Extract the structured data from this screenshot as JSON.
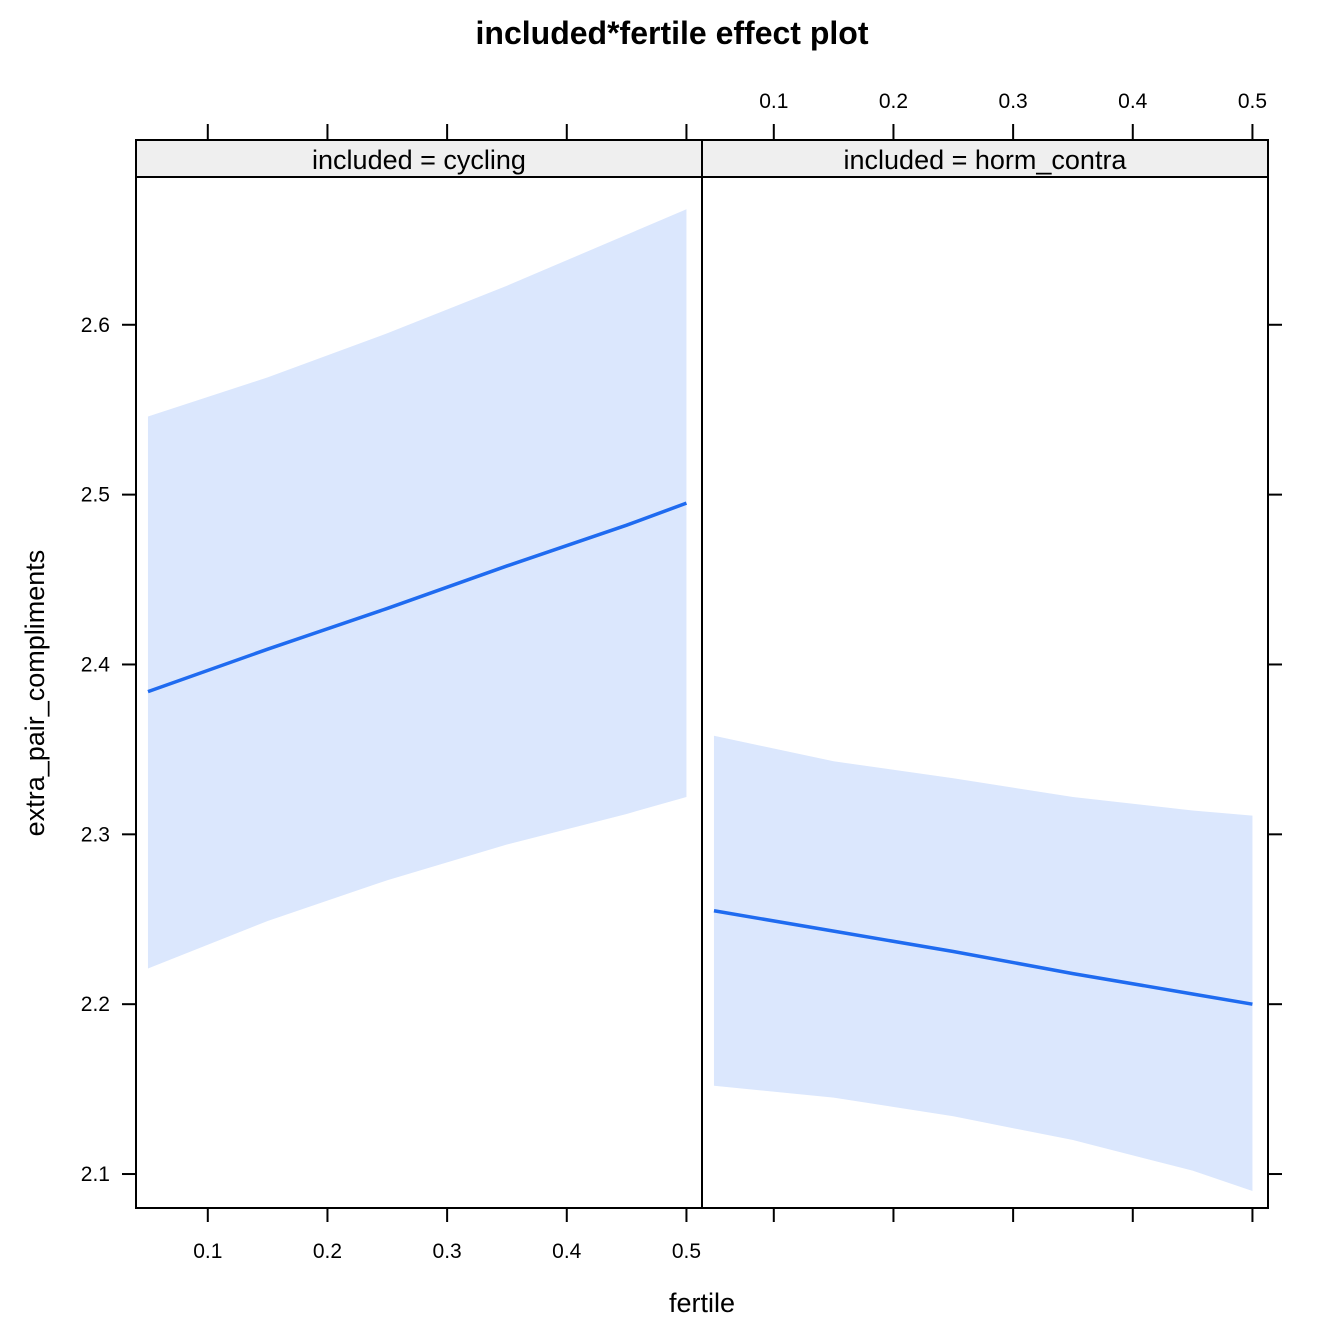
{
  "chart_data": {
    "type": "line",
    "title": "included*fertile effect plot",
    "xlabel": "fertile",
    "ylabel": "extra_pair_compliments",
    "xlim": [
      0.04,
      0.513
    ],
    "ylim": [
      2.08,
      2.687
    ],
    "x_ticks": [
      0.1,
      0.2,
      0.3,
      0.4,
      0.5
    ],
    "x_tick_labels": [
      "0.1",
      "0.2",
      "0.3",
      "0.4",
      "0.5"
    ],
    "y_ticks": [
      2.1,
      2.2,
      2.3,
      2.4,
      2.5,
      2.6
    ],
    "y_tick_labels": [
      "2.1",
      "2.2",
      "2.3",
      "2.4",
      "2.5",
      "2.6"
    ],
    "colors": {
      "line": "#1f6bf0",
      "band": "#dbe7fd",
      "strip": "#efefef"
    },
    "panels": [
      {
        "strip": "included = cycling",
        "x": [
          0.05,
          0.15,
          0.25,
          0.35,
          0.45,
          0.5
        ],
        "fit": [
          2.384,
          2.409,
          2.433,
          2.458,
          2.482,
          2.495
        ],
        "lower": [
          2.221,
          2.249,
          2.273,
          2.294,
          2.312,
          2.322
        ],
        "upper": [
          2.546,
          2.569,
          2.595,
          2.623,
          2.653,
          2.668
        ]
      },
      {
        "strip": "included = horm_contra",
        "x": [
          0.05,
          0.15,
          0.25,
          0.35,
          0.45,
          0.5
        ],
        "fit": [
          2.255,
          2.243,
          2.231,
          2.218,
          2.206,
          2.2
        ],
        "lower": [
          2.152,
          2.145,
          2.134,
          2.12,
          2.102,
          2.09
        ],
        "upper": [
          2.358,
          2.343,
          2.333,
          2.322,
          2.314,
          2.311
        ]
      }
    ]
  }
}
